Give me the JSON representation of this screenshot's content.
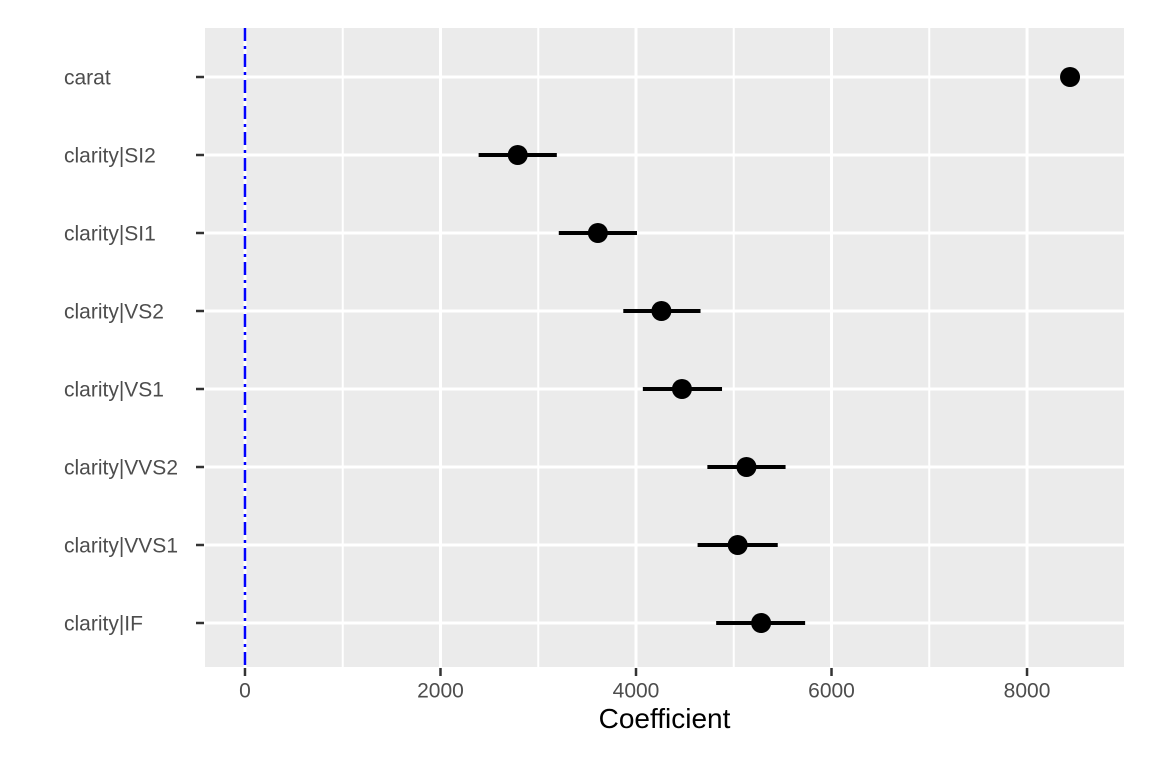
{
  "chart_data": {
    "type": "scatter",
    "subtype": "coefficient-dot-whisker",
    "title": "",
    "xlabel": "Coefficient",
    "ylabel": "",
    "categories": [
      "carat",
      "clarity|SI2",
      "clarity|SI1",
      "clarity|VS2",
      "clarity|VS1",
      "clarity|VVS2",
      "clarity|VVS1",
      "clarity|IF"
    ],
    "series": [
      {
        "name": "estimate",
        "values": [
          8440,
          2790,
          3610,
          4260,
          4470,
          5130,
          5040,
          5280
        ]
      },
      {
        "name": "ci_low",
        "values": [
          8440,
          2390,
          3210,
          3870,
          4070,
          4730,
          4630,
          4820
        ]
      },
      {
        "name": "ci_high",
        "values": [
          8440,
          3190,
          4010,
          4660,
          4880,
          5530,
          5450,
          5730
        ]
      }
    ],
    "x_ticks": [
      0,
      2000,
      4000,
      6000,
      8000
    ],
    "x_tick_labels": [
      "0",
      "2000",
      "4000",
      "6000",
      "8000"
    ],
    "x_minor_ticks": [
      1000,
      3000,
      5000,
      7000
    ],
    "xlim": [
      -409,
      8992
    ],
    "reference_line": {
      "x": 0,
      "color": "#0000FF",
      "style": "dash-dot"
    },
    "grid": true,
    "legend": "none",
    "colors": {
      "panel_bg": "#EBEBEB",
      "grid": "#FFFFFF",
      "point": "#000000",
      "error_bar": "#000000",
      "axis_text": "#4D4D4D",
      "tick_mark": "#333333",
      "axis_title": "#000000",
      "plot_bg": "#FFFFFF"
    }
  }
}
